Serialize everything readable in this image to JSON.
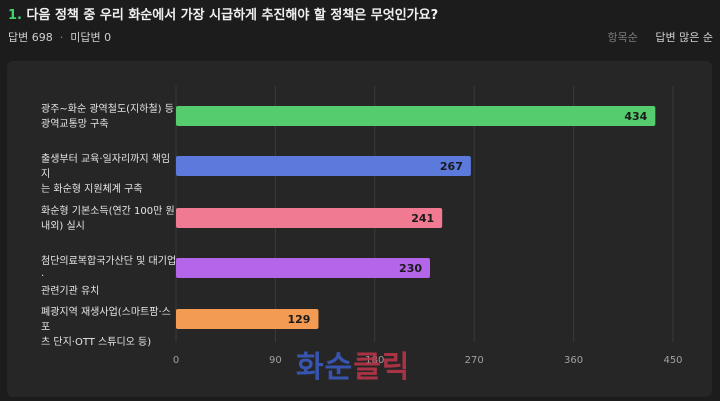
{
  "question": {
    "number": "1.",
    "text": "다음 정책 중 우리 화순에서 가장 시급하게 추진해야 할 정책은 무엇인가요?"
  },
  "meta": {
    "answers": "답변 698",
    "unanswered": "미답변 0",
    "separator": "·"
  },
  "sort": {
    "item_order": "항목순",
    "most_answers": "답변 많은 순"
  },
  "watermark": {
    "part1": "화순",
    "part2": "클릭"
  },
  "chart_data": {
    "type": "bar",
    "orientation": "horizontal",
    "categories": [
      [
        "광주~화순 광역철도(지하철) 등",
        "광역교통망 구축"
      ],
      [
        "출생부터 교육·일자리까지 책임지",
        "는 화순형 지원체계 구축"
      ],
      [
        "화순형 기본소득(연간 100만 원",
        "내외) 실시"
      ],
      [
        "첨단의료복합국가산단 및 대기업·",
        "관련기관 유치"
      ],
      [
        "폐광지역 재생사업(스마트팜·스포",
        "츠 단지·OTT 스튜디오 등)"
      ]
    ],
    "values": [
      434,
      267,
      241,
      230,
      129
    ],
    "colors": [
      "#55cc6e",
      "#5c79dc",
      "#ef7a92",
      "#b565ea",
      "#f39b52"
    ],
    "xlim": [
      0,
      450
    ],
    "xticks": [
      "0",
      "90",
      "180",
      "270",
      "360",
      "450"
    ],
    "grid": true
  }
}
